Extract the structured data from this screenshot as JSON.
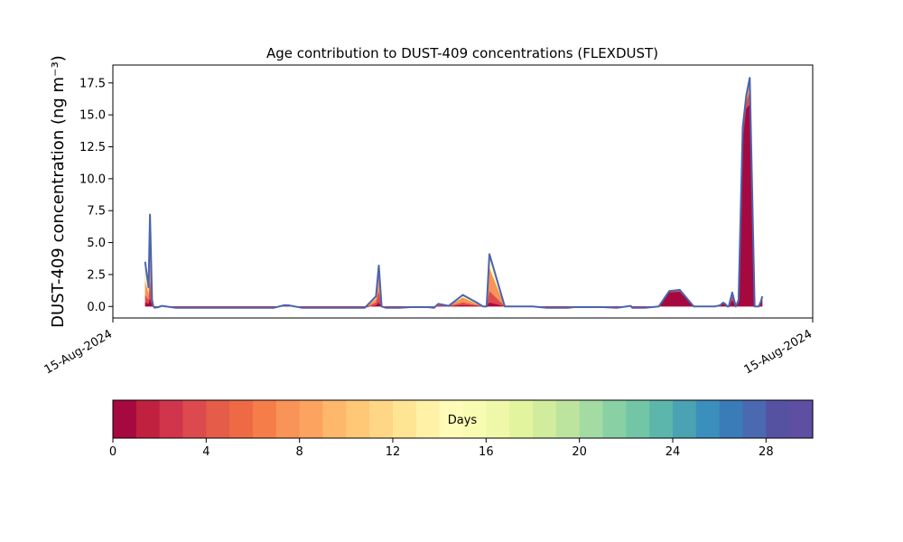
{
  "chart_data": {
    "type": "area",
    "title": "Age contribution to DUST-409 concentrations (FLEXDUST)",
    "ylabel": "DUST-409 concentration (ng m⁻³)",
    "xlabel": "",
    "x_tick_labels": [
      "15-Aug-2024",
      "15-Aug-2024"
    ],
    "x_range": [
      0,
      1
    ],
    "ylim": [
      -0.9,
      18.9
    ],
    "y_ticks": [
      0.0,
      2.5,
      5.0,
      7.5,
      10.0,
      12.5,
      15.0,
      17.5
    ],
    "y_tick_labels": [
      "0.0",
      "2.5",
      "5.0",
      "7.5",
      "10.0",
      "12.5",
      "15.0",
      "17.5"
    ],
    "grid": false,
    "x": [
      0.046,
      0.051,
      0.053,
      0.056,
      0.058,
      0.06,
      0.065,
      0.07,
      0.09,
      0.14,
      0.18,
      0.23,
      0.245,
      0.25,
      0.27,
      0.3,
      0.36,
      0.376,
      0.38,
      0.384,
      0.39,
      0.41,
      0.425,
      0.435,
      0.45,
      0.459,
      0.465,
      0.48,
      0.5,
      0.52,
      0.529,
      0.531,
      0.534,
      0.538,
      0.56,
      0.6,
      0.62,
      0.65,
      0.66,
      0.7,
      0.72,
      0.74,
      0.742,
      0.759,
      0.76,
      0.77,
      0.78,
      0.795,
      0.81,
      0.83,
      0.85,
      0.86,
      0.868,
      0.872,
      0.875,
      0.878,
      0.88,
      0.885,
      0.89,
      0.894,
      0.9,
      0.905,
      0.91,
      0.917,
      0.918,
      0.921,
      0.923,
      0.926,
      0.928
    ],
    "total": [
      3.5,
      1.5,
      7.2,
      0.5,
      0.0,
      -0.1,
      -0.05,
      0.05,
      -0.1,
      -0.1,
      -0.1,
      -0.1,
      0.1,
      0.1,
      -0.1,
      -0.1,
      -0.1,
      0.8,
      3.2,
      0.0,
      -0.1,
      -0.1,
      -0.05,
      -0.05,
      -0.05,
      -0.1,
      0.2,
      0.05,
      0.9,
      0.3,
      0.0,
      0.0,
      0.0,
      4.1,
      0.0,
      0.0,
      -0.1,
      -0.1,
      -0.05,
      -0.05,
      -0.1,
      0.05,
      -0.1,
      -0.1,
      -0.1,
      -0.05,
      0.0,
      1.2,
      1.3,
      0.0,
      0.0,
      0.0,
      0.1,
      0.3,
      0.2,
      0.0,
      0.0,
      1.1,
      0.0,
      0.5,
      14.0,
      16.5,
      17.9,
      0.0,
      0.0,
      0.0,
      0.0,
      0.4,
      0.8
    ],
    "series": [
      {
        "min_age_days": 0,
        "values": [
          0.3,
          0.2,
          0.6,
          0.1,
          0.0,
          -0.1,
          -0.05,
          0.02,
          -0.1,
          -0.1,
          -0.1,
          -0.1,
          0.05,
          0.05,
          -0.1,
          -0.1,
          -0.1,
          0.1,
          0.3,
          0.0,
          -0.1,
          -0.1,
          -0.05,
          -0.05,
          -0.05,
          -0.1,
          0.05,
          0.02,
          0.1,
          0.05,
          0.0,
          0.0,
          0.0,
          0.3,
          0.0,
          0.0,
          -0.1,
          -0.1,
          -0.05,
          -0.05,
          -0.1,
          0.02,
          -0.1,
          -0.1,
          -0.1,
          -0.05,
          0.0,
          1.1,
          1.15,
          0.0,
          0.0,
          0.0,
          0.08,
          0.25,
          0.15,
          0.0,
          0.0,
          0.5,
          0.0,
          0.3,
          13.0,
          15.5,
          15.8,
          0.0,
          0.0,
          0.0,
          0.0,
          0.3,
          0.6
        ]
      },
      {
        "min_age_days": 3,
        "values": [
          0.9,
          0.5,
          2.0,
          0.2,
          0.0,
          -0.1,
          -0.05,
          0.03,
          -0.1,
          -0.1,
          -0.1,
          -0.1,
          0.07,
          0.07,
          -0.1,
          -0.1,
          -0.1,
          0.3,
          1.2,
          0.0,
          -0.1,
          -0.1,
          -0.05,
          -0.05,
          -0.05,
          -0.1,
          0.1,
          0.03,
          0.3,
          0.1,
          0.0,
          0.0,
          0.0,
          1.2,
          0.0,
          0.0,
          -0.1,
          -0.1,
          -0.05,
          -0.05,
          -0.1,
          0.03,
          -0.1,
          -0.1,
          -0.1,
          -0.05,
          0.0,
          1.15,
          1.22,
          0.0,
          0.0,
          0.0,
          0.09,
          0.28,
          0.18,
          0.0,
          0.0,
          0.8,
          0.0,
          0.4,
          13.5,
          16.0,
          16.8,
          0.0,
          0.0,
          0.0,
          0.0,
          0.35,
          0.7
        ]
      },
      {
        "min_age_days": 7,
        "values": [
          2.0,
          1.0,
          4.5,
          0.3,
          0.0,
          -0.1,
          -0.05,
          0.04,
          -0.1,
          -0.1,
          -0.1,
          -0.1,
          0.09,
          0.09,
          -0.1,
          -0.1,
          -0.1,
          0.6,
          2.6,
          0.0,
          -0.1,
          -0.1,
          -0.05,
          -0.05,
          -0.05,
          -0.1,
          0.15,
          0.04,
          0.7,
          0.2,
          0.0,
          0.0,
          0.0,
          3.0,
          0.0,
          0.0,
          -0.1,
          -0.1,
          -0.05,
          -0.05,
          -0.1,
          0.04,
          -0.1,
          -0.1,
          -0.1,
          -0.05,
          0.0,
          1.18,
          1.27,
          0.0,
          0.0,
          0.0,
          0.1,
          0.29,
          0.19,
          0.0,
          0.0,
          1.0,
          0.0,
          0.45,
          13.8,
          16.3,
          17.4,
          0.0,
          0.0,
          0.0,
          0.0,
          0.38,
          0.75
        ]
      },
      {
        "min_age_days": 14,
        "values": [
          3.3,
          1.4,
          6.9,
          0.45,
          0.0,
          -0.1,
          -0.05,
          0.05,
          -0.1,
          -0.1,
          -0.1,
          -0.1,
          0.1,
          0.1,
          -0.1,
          -0.1,
          -0.1,
          0.78,
          3.1,
          0.0,
          -0.1,
          -0.1,
          -0.05,
          -0.05,
          -0.05,
          -0.1,
          0.19,
          0.05,
          0.88,
          0.28,
          0.0,
          0.0,
          0.0,
          3.95,
          0.0,
          0.0,
          -0.1,
          -0.1,
          -0.05,
          -0.05,
          -0.1,
          0.05,
          -0.1,
          -0.1,
          -0.1,
          -0.05,
          0.0,
          1.2,
          1.29,
          0.0,
          0.0,
          0.0,
          0.1,
          0.3,
          0.2,
          0.0,
          0.0,
          1.08,
          0.0,
          0.49,
          13.95,
          16.45,
          17.8,
          0.0,
          0.0,
          0.0,
          0.0,
          0.4,
          0.79
        ]
      }
    ],
    "line_color": "#4a64b0",
    "colorbar": {
      "label": "Days",
      "range": [
        0,
        30
      ],
      "ticks": [
        0,
        4,
        8,
        12,
        16,
        20,
        24,
        28
      ],
      "tick_labels": [
        "0",
        "4",
        "8",
        "12",
        "16",
        "20",
        "24",
        "28"
      ],
      "colors": [
        "#a6093f",
        "#c0213e",
        "#d0354c",
        "#dc4a4d",
        "#e55c49",
        "#ee6a44",
        "#f57d4a",
        "#f89457",
        "#fba35f",
        "#fdb86b",
        "#fec877",
        "#fed685",
        "#fee594",
        "#fff1a6",
        "#fffbb8",
        "#f8fbb2",
        "#eff8a8",
        "#e3f49f",
        "#d1ec9c",
        "#bce49f",
        "#a3dba3",
        "#89d0a4",
        "#72c6a5",
        "#5cb6ab",
        "#4aa2b2",
        "#3a8fbc",
        "#3a7cb8",
        "#4a69b0",
        "#5652a2",
        "#5e4fa2"
      ]
    }
  }
}
